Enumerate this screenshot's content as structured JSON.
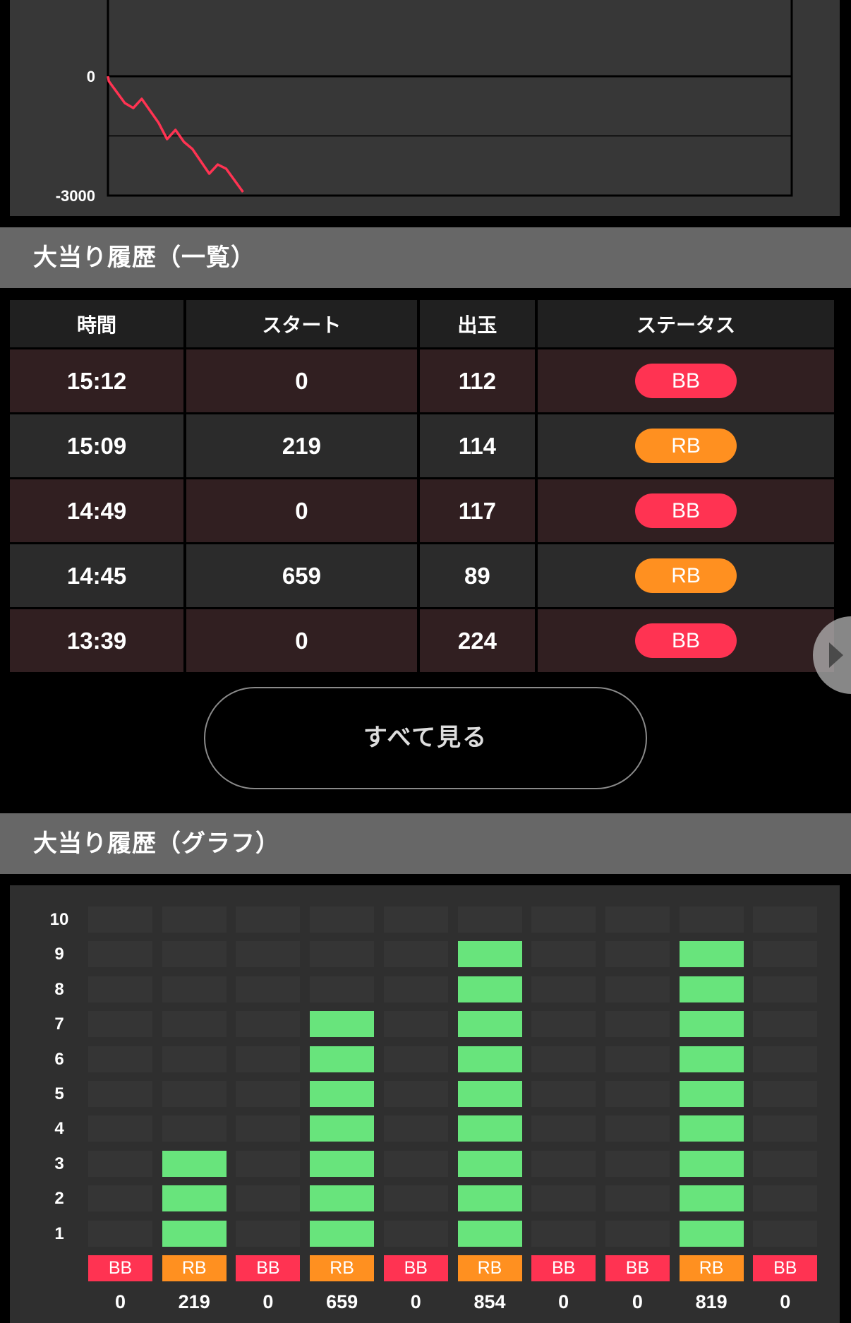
{
  "colors": {
    "bb": "#ff3352",
    "rb": "#ff9020",
    "line": "#ff3352",
    "bar": "#68e47c"
  },
  "chart_data": [
    {
      "type": "line",
      "ylim": [
        -3000,
        3000
      ],
      "xlim": [
        0,
        81
      ],
      "yticks": [
        "0",
        "-3000"
      ],
      "gridlines": [
        0,
        -1500
      ],
      "series": [
        {
          "x": [
            0,
            0.1,
            2,
            3,
            4,
            6,
            7,
            8,
            9,
            10,
            12,
            13,
            14,
            16
          ],
          "y": [
            0,
            -124,
            -675,
            -799,
            -568,
            -1172,
            -1580,
            -1349,
            -1651,
            -1828,
            -2450,
            -2219,
            -2325,
            -2911
          ]
        }
      ]
    },
    {
      "type": "bar",
      "ylim": [
        0,
        10
      ],
      "yticks": [
        "1",
        "2",
        "3",
        "4",
        "5",
        "6",
        "7",
        "8",
        "9",
        "10"
      ],
      "categories": [
        "BB",
        "RB",
        "BB",
        "RB",
        "BB",
        "RB",
        "BB",
        "BB",
        "RB",
        "BB"
      ],
      "starts": [
        "0",
        "219",
        "0",
        "659",
        "0",
        "854",
        "0",
        "0",
        "819",
        "0"
      ],
      "values": [
        0,
        3,
        0,
        7,
        0,
        9,
        0,
        0,
        9,
        0
      ]
    }
  ],
  "history_list": {
    "title": "大当り履歴（一覧）",
    "headers": [
      "時間",
      "スタート",
      "出玉",
      "ステータス"
    ],
    "rows": [
      {
        "time": "15:12",
        "start": "0",
        "payout": "112",
        "status": "BB"
      },
      {
        "time": "15:09",
        "start": "219",
        "payout": "114",
        "status": "RB"
      },
      {
        "time": "14:49",
        "start": "0",
        "payout": "117",
        "status": "BB"
      },
      {
        "time": "14:45",
        "start": "659",
        "payout": "89",
        "status": "RB"
      },
      {
        "time": "13:39",
        "start": "0",
        "payout": "224",
        "status": "BB"
      }
    ],
    "view_all": "すべて見る",
    "next_icon": "chevron-right-icon"
  },
  "history_graph": {
    "title": "大当り履歴（グラフ）"
  }
}
